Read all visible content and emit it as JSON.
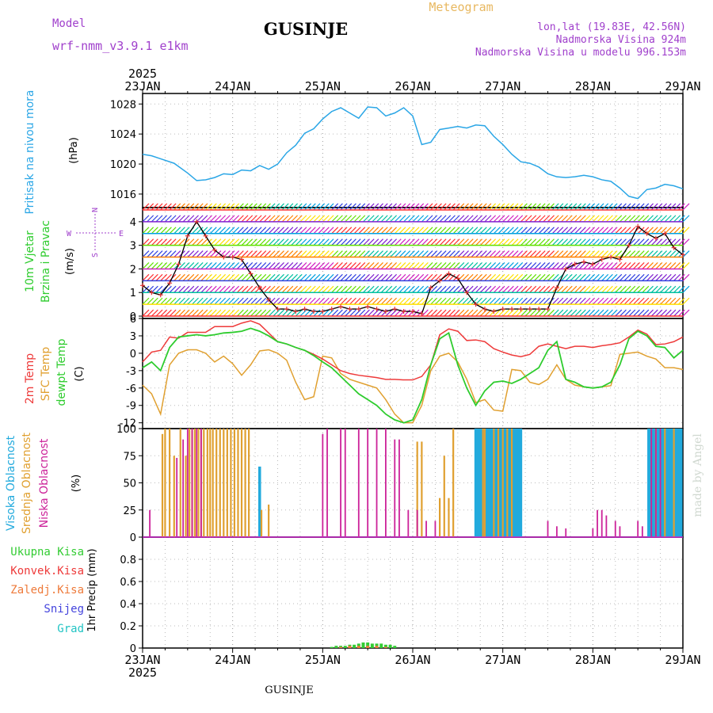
{
  "header": {
    "model_label": "Model",
    "model_name": "wrf-nmm_v3.9.1 e1km",
    "title": "GUSINJE",
    "product": "Meteogram",
    "location": "lon,lat (19.83E, 42.56N)",
    "elevation": "Nadmorska Visina 924m",
    "model_elevation": "Nadmorska Visina u modelu 996.153m",
    "footer_station": "GUSINJE",
    "credit": "made by Angel"
  },
  "time_axis": {
    "year": "2025",
    "labels": [
      "23JAN",
      "24JAN",
      "25JAN",
      "26JAN",
      "27JAN",
      "28JAN",
      "29JAN"
    ]
  },
  "colors": {
    "pressure": "#2aa6e6",
    "temp2m": "#ee3a3a",
    "sfc": "#e0a030",
    "dewpt": "#2ecc2e",
    "high_cloud": "#22aadd",
    "mid_cloud": "#e0a030",
    "low_cloud": "#cc2299",
    "precip_total": "#33cc33",
    "precip_conv": "#ee3a3a",
    "precip_frz": "#ee7a3a",
    "precip_snow": "#4444dd",
    "precip_grad": "#22c4c4",
    "label_purple": "#a040cc",
    "label_orange": "#e8b860"
  },
  "panels": {
    "pressure": {
      "label": "Pritisak na nivou mora",
      "unit": "(hPa)"
    },
    "wind": {
      "label1": "10m Vjetar",
      "label2": "Brzina i Pravac",
      "unit": "(m/s)",
      "compass_w": "W",
      "compass_e": "E",
      "compass_n": "N",
      "compass_s": "S"
    },
    "temp": {
      "label1": "2m Temp",
      "label2": "SFC Temp",
      "label3": "dewpt Temp",
      "unit": "(C)"
    },
    "cloud": {
      "label1": "Visoka Oblacnost",
      "label2": "Srednja Oblacnost",
      "label3": "Niska Oblacnost",
      "unit": "(%)"
    },
    "precip": {
      "label_total": "Ukupna Kisa",
      "label_conv": "Konvek.Kisa",
      "label_frz": "Zaledj.Kisa",
      "label_snow": "Snijeg",
      "label_grad": "Grad",
      "unit": "1hr Precip (mm)"
    }
  },
  "chart_data": [
    {
      "type": "line",
      "name": "pressure",
      "ylim": [
        1014.2,
        1029.4
      ],
      "yticks": [
        1016,
        1020,
        1024,
        1028
      ],
      "x": [
        0,
        0.1,
        0.2,
        0.35,
        0.5,
        0.6,
        0.7,
        0.8,
        0.9,
        1.0,
        1.1,
        1.2,
        1.3,
        1.4,
        1.5,
        1.6,
        1.7,
        1.8,
        1.9,
        2.0,
        2.1,
        2.2,
        2.3,
        2.4,
        2.5,
        2.6,
        2.7,
        2.8,
        2.9,
        3.0,
        3.1,
        3.2,
        3.3,
        3.4,
        3.5,
        3.6,
        3.7,
        3.8,
        3.9,
        4.0,
        4.1,
        4.2,
        4.3,
        4.4,
        4.5,
        4.6,
        4.7,
        4.8,
        4.9,
        5.0,
        5.1,
        5.2,
        5.3,
        5.4,
        5.5,
        5.6,
        5.7,
        5.8,
        5.9,
        6.0
      ],
      "y": [
        1021.3,
        1021.1,
        1020.7,
        1020.1,
        1018.8,
        1017.8,
        1017.9,
        1018.2,
        1018.7,
        1018.6,
        1019.2,
        1019.1,
        1019.8,
        1019.3,
        1020.0,
        1021.5,
        1022.5,
        1024.1,
        1024.7,
        1026.0,
        1027.0,
        1027.5,
        1026.8,
        1026.1,
        1027.6,
        1027.5,
        1026.4,
        1026.8,
        1027.5,
        1026.4,
        1022.6,
        1022.9,
        1024.6,
        1024.8,
        1025.0,
        1024.8,
        1025.2,
        1025.1,
        1023.7,
        1022.6,
        1021.3,
        1020.3,
        1020.1,
        1019.6,
        1018.7,
        1018.3,
        1018.2,
        1018.3,
        1018.5,
        1018.3,
        1017.9,
        1017.7,
        1016.8,
        1015.7,
        1015.4,
        1016.6,
        1016.8,
        1017.3,
        1017.1,
        1016.7
      ]
    },
    {
      "type": "line",
      "name": "wind",
      "ylim": [
        -0.1,
        4.6
      ],
      "yticks": [
        0,
        1,
        2,
        3,
        4
      ],
      "x": [
        0,
        0.1,
        0.2,
        0.3,
        0.4,
        0.5,
        0.6,
        0.7,
        0.8,
        0.9,
        1.0,
        1.1,
        1.2,
        1.3,
        1.4,
        1.5,
        1.6,
        1.7,
        1.8,
        1.9,
        2.0,
        2.1,
        2.2,
        2.3,
        2.4,
        2.5,
        2.6,
        2.7,
        2.8,
        2.9,
        3.0,
        3.1,
        3.2,
        3.3,
        3.4,
        3.5,
        3.6,
        3.7,
        3.8,
        3.9,
        4.0,
        4.1,
        4.2,
        4.3,
        4.4,
        4.5,
        4.6,
        4.7,
        4.8,
        4.9,
        5.0,
        5.1,
        5.2,
        5.3,
        5.4,
        5.5,
        5.6,
        5.7,
        5.8,
        5.9,
        6.0
      ],
      "series": [
        {
          "name": "10m Vjetar",
          "values": [
            1.3,
            1.0,
            0.9,
            1.4,
            2.2,
            3.4,
            4.0,
            3.4,
            2.8,
            2.5,
            2.5,
            2.4,
            1.8,
            1.2,
            0.7,
            0.3,
            0.3,
            0.2,
            0.3,
            0.2,
            0.2,
            0.3,
            0.4,
            0.3,
            0.3,
            0.4,
            0.3,
            0.2,
            0.3,
            0.2,
            0.2,
            0.1,
            1.2,
            1.5,
            1.8,
            1.6,
            1.0,
            0.5,
            0.3,
            0.2,
            0.3,
            0.3,
            0.3,
            0.3,
            0.3,
            0.3,
            1.2,
            2.0,
            2.2,
            2.3,
            2.2,
            2.4,
            2.5,
            2.4,
            3.0,
            3.8,
            3.5,
            3.3,
            3.5,
            2.9,
            2.6
          ]
        }
      ]
    },
    {
      "type": "line",
      "name": "temperature",
      "ylim": [
        -13,
        6
      ],
      "yticks": [
        -12,
        -9,
        -6,
        -3,
        0,
        3,
        6
      ],
      "x": [
        0,
        0.1,
        0.2,
        0.3,
        0.4,
        0.5,
        0.6,
        0.7,
        0.8,
        0.9,
        1.0,
        1.1,
        1.2,
        1.3,
        1.4,
        1.5,
        1.6,
        1.7,
        1.8,
        1.9,
        2.0,
        2.1,
        2.2,
        2.3,
        2.4,
        2.5,
        2.6,
        2.7,
        2.8,
        2.9,
        3.0,
        3.1,
        3.2,
        3.3,
        3.4,
        3.5,
        3.6,
        3.7,
        3.8,
        3.9,
        4.0,
        4.1,
        4.2,
        4.3,
        4.4,
        4.5,
        4.6,
        4.7,
        4.8,
        4.9,
        5.0,
        5.1,
        5.2,
        5.3,
        5.4,
        5.5,
        5.6,
        5.7,
        5.8,
        5.9,
        6.0
      ],
      "series": [
        {
          "name": "2m Temp",
          "values": [
            -1.5,
            0.2,
            0.5,
            2.8,
            2.6,
            3.6,
            3.6,
            3.6,
            4.6,
            4.6,
            4.6,
            5.2,
            5.6,
            5.0,
            3.5,
            2.0,
            1.6,
            1.0,
            0.5,
            -0.2,
            -1.0,
            -2.0,
            -3.0,
            -3.5,
            -3.8,
            -4.0,
            -4.2,
            -4.5,
            -4.5,
            -4.6,
            -4.6,
            -4.0,
            -2.0,
            3.2,
            4.2,
            3.8,
            2.2,
            2.3,
            2.0,
            0.8,
            0.2,
            -0.3,
            -0.6,
            -0.2,
            1.2,
            1.6,
            1.2,
            0.8,
            1.2,
            1.2,
            1.0,
            1.3,
            1.5,
            1.8,
            2.8,
            4.0,
            3.3,
            1.5,
            1.6,
            2.0,
            2.8
          ]
        },
        {
          "name": "SFC Temp",
          "values": [
            -5.5,
            -7.0,
            -10.5,
            -2.0,
            0.0,
            0.6,
            0.6,
            0.0,
            -1.5,
            -0.5,
            -1.8,
            -3.8,
            -2.0,
            0.4,
            0.6,
            0.0,
            -1.2,
            -5.0,
            -8.0,
            -7.5,
            -0.5,
            -0.8,
            -3.5,
            -4.5,
            -5.0,
            -5.5,
            -6.0,
            -8.0,
            -10.5,
            -12.0,
            -12.0,
            -9.0,
            -3.0,
            -0.5,
            0.0,
            -1.5,
            -4.5,
            -8.5,
            -8.0,
            -9.8,
            -10.0,
            -2.8,
            -3.0,
            -5.0,
            -5.4,
            -4.5,
            -2.0,
            -4.5,
            -5.5,
            -5.8,
            -6.0,
            -5.8,
            -5.6,
            -0.2,
            0.0,
            0.2,
            -0.5,
            -1.0,
            -2.5,
            -2.5,
            -2.8
          ]
        },
        {
          "name": "dewpt Temp",
          "values": [
            -2.5,
            -1.5,
            -3.0,
            1.0,
            2.8,
            3.0,
            3.2,
            3.0,
            3.2,
            3.5,
            3.6,
            3.8,
            4.3,
            3.8,
            3.0,
            2.0,
            1.6,
            1.0,
            0.5,
            -0.4,
            -1.5,
            -2.5,
            -4.0,
            -5.5,
            -7.0,
            -8.0,
            -9.0,
            -10.5,
            -11.5,
            -12.0,
            -11.5,
            -8.0,
            -2.0,
            2.5,
            3.5,
            -2.0,
            -6.0,
            -9.0,
            -6.5,
            -5.0,
            -4.8,
            -5.2,
            -4.5,
            -3.5,
            -2.5,
            0.5,
            2.0,
            -4.5,
            -5.0,
            -5.8,
            -6.0,
            -5.8,
            -5.0,
            -2.0,
            2.5,
            3.8,
            3.0,
            1.2,
            1.0,
            -0.8,
            0.5
          ]
        }
      ]
    },
    {
      "type": "bar",
      "name": "cloud",
      "ylim": [
        0,
        100
      ],
      "yticks": [
        0,
        25,
        50,
        75,
        100
      ],
      "series": [
        {
          "name": "Visoka Oblacnost",
          "x": [
            1.3,
            3.7,
            3.72,
            3.74,
            3.76,
            3.78,
            3.8,
            3.82,
            3.84,
            3.86,
            3.88,
            3.9,
            3.92,
            3.94,
            3.96,
            3.98,
            4.0,
            4.02,
            4.04,
            4.06,
            4.08,
            4.1,
            4.12,
            4.14,
            4.16,
            4.18,
            4.2,
            5.62,
            5.64,
            5.66,
            5.68,
            5.7,
            5.72,
            5.74,
            5.76,
            5.78,
            5.8,
            5.82,
            5.84,
            5.86,
            5.88,
            5.9,
            5.92,
            5.94,
            5.96,
            5.98
          ],
          "values": [
            65,
            100,
            100,
            100,
            100,
            100,
            100,
            100,
            100,
            100,
            100,
            100,
            100,
            100,
            100,
            100,
            100,
            100,
            100,
            100,
            100,
            100,
            100,
            100,
            100,
            100,
            100,
            100,
            100,
            100,
            100,
            100,
            100,
            100,
            100,
            100,
            100,
            100,
            100,
            100,
            100,
            100,
            100,
            100,
            100,
            100
          ]
        },
        {
          "name": "Srednja Oblacnost",
          "x": [
            0.22,
            0.25,
            0.3,
            0.35,
            0.42,
            0.48,
            0.52,
            0.55,
            0.58,
            0.62,
            0.65,
            0.68,
            0.72,
            0.75,
            0.78,
            0.82,
            0.86,
            0.9,
            0.94,
            0.98,
            1.02,
            1.06,
            1.1,
            1.14,
            1.18,
            1.32,
            1.4,
            3.05,
            3.1,
            3.3,
            3.35,
            3.4,
            3.45,
            3.78,
            3.8,
            3.9,
            3.95,
            4.0,
            4.05,
            4.1,
            5.7,
            5.8,
            5.9
          ],
          "values": [
            95,
            100,
            100,
            75,
            100,
            75,
            100,
            100,
            100,
            100,
            100,
            100,
            100,
            100,
            100,
            100,
            100,
            100,
            100,
            100,
            100,
            100,
            100,
            100,
            100,
            25,
            30,
            88,
            88,
            36,
            75,
            36,
            100,
            100,
            100,
            100,
            100,
            100,
            100,
            100,
            100,
            100,
            100
          ]
        },
        {
          "name": "Niska Oblacnost",
          "x": [
            0.08,
            0.38,
            0.45,
            0.5,
            0.55,
            0.6,
            0.65,
            2.0,
            2.05,
            2.2,
            2.25,
            2.4,
            2.5,
            2.6,
            2.7,
            2.8,
            2.85,
            2.95,
            3.05,
            3.15,
            3.25,
            4.5,
            4.6,
            4.7,
            5.0,
            5.05,
            5.1,
            5.15,
            5.25,
            5.3,
            5.5,
            5.55,
            5.65,
            5.7,
            5.75
          ],
          "values": [
            25,
            73,
            90,
            100,
            100,
            100,
            100,
            95,
            100,
            100,
            100,
            100,
            100,
            100,
            100,
            90,
            90,
            25,
            25,
            15,
            15,
            15,
            10,
            8,
            8,
            25,
            25,
            20,
            15,
            10,
            15,
            10,
            100,
            100,
            100
          ]
        }
      ]
    },
    {
      "type": "bar",
      "name": "precipitation",
      "ylim": [
        0,
        1.0
      ],
      "yticks": [
        0,
        0.2,
        0.4,
        0.6,
        0.8
      ],
      "series": [
        {
          "name": "Ukupna Kisa",
          "x": [
            2.1,
            2.15,
            2.2,
            2.25,
            2.3,
            2.35,
            2.4,
            2.45,
            2.5,
            2.55,
            2.6,
            2.65,
            2.7,
            2.75,
            2.8
          ],
          "values": [
            0.01,
            0.02,
            0.02,
            0.02,
            0.03,
            0.03,
            0.04,
            0.05,
            0.05,
            0.04,
            0.04,
            0.04,
            0.03,
            0.03,
            0.02
          ]
        },
        {
          "name": "Zaledj.Kisa",
          "x": [
            2.2,
            2.3,
            2.4,
            2.5,
            2.6,
            2.7
          ],
          "values": [
            0.01,
            0.02,
            0.02,
            0.02,
            0.02,
            0.01
          ]
        }
      ]
    }
  ]
}
